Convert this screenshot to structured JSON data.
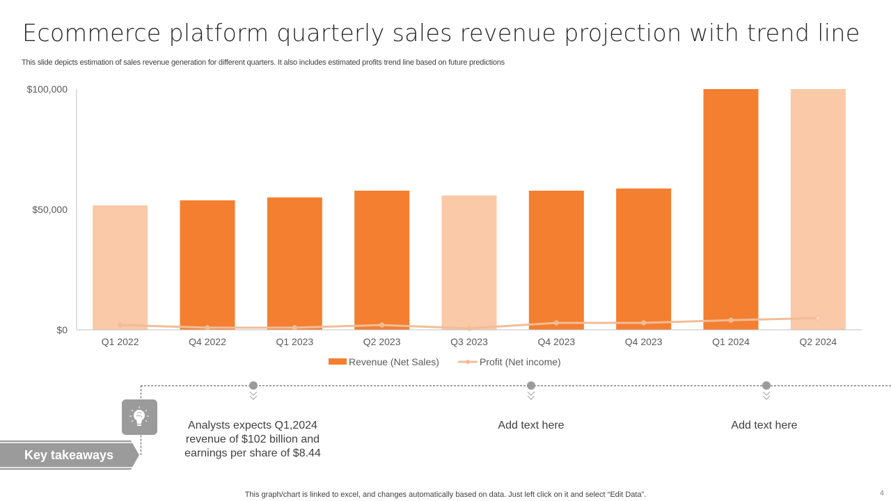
{
  "slide": {
    "title": "Ecommerce platform quarterly sales revenue projection with trend line",
    "subtitle": "This slide depicts estimation of sales revenue generation for different quarters. It also includes estimated profits trend line based on future predictions",
    "footer": "This graph/chart is linked to excel,  and changes automatically based on data. Just left click on it and select “Edit Data”.",
    "page_number": "4"
  },
  "colors": {
    "revenue_dark": "#F47F30",
    "revenue_light": "#F9C9A8",
    "profit_line": "#F1BD98",
    "axis": "#BFBFBF",
    "gray_accent": "#9B9B9B"
  },
  "chart_data": {
    "type": "bar",
    "title": "",
    "xlabel": "",
    "ylabel": "",
    "ylim": [
      0,
      100000
    ],
    "yticks": [
      0,
      50000,
      100000
    ],
    "ytick_labels": [
      "$0",
      "$50,000",
      "$100,000"
    ],
    "grid": false,
    "legend_position": "bottom",
    "categories": [
      "Q1 2022",
      "Q4 2022",
      "Q1 2023",
      "Q2 2023",
      "Q3 2023",
      "Q4 2023",
      "Q4 2023",
      "Q1 2024",
      "Q2 2024"
    ],
    "series": [
      {
        "name": "Revenue (Net Sales)",
        "type": "bar",
        "values": [
          51700,
          53800,
          55000,
          57800,
          55800,
          57800,
          58700,
          100000,
          100000
        ],
        "highlight": [
          false,
          true,
          true,
          true,
          false,
          true,
          true,
          true,
          false
        ]
      },
      {
        "name": "Profit (Net income)",
        "type": "line",
        "values": [
          2000,
          900,
          900,
          2000,
          600,
          2900,
          2900,
          4000,
          4900
        ]
      }
    ]
  },
  "takeaways": {
    "label": "Key takeaways",
    "icon": "lightbulb-brain-icon",
    "notes": [
      "Analysts expects Q1,2024 revenue of $102 billion and earnings per share of $8.44",
      "Add text here",
      "Add text here"
    ]
  }
}
